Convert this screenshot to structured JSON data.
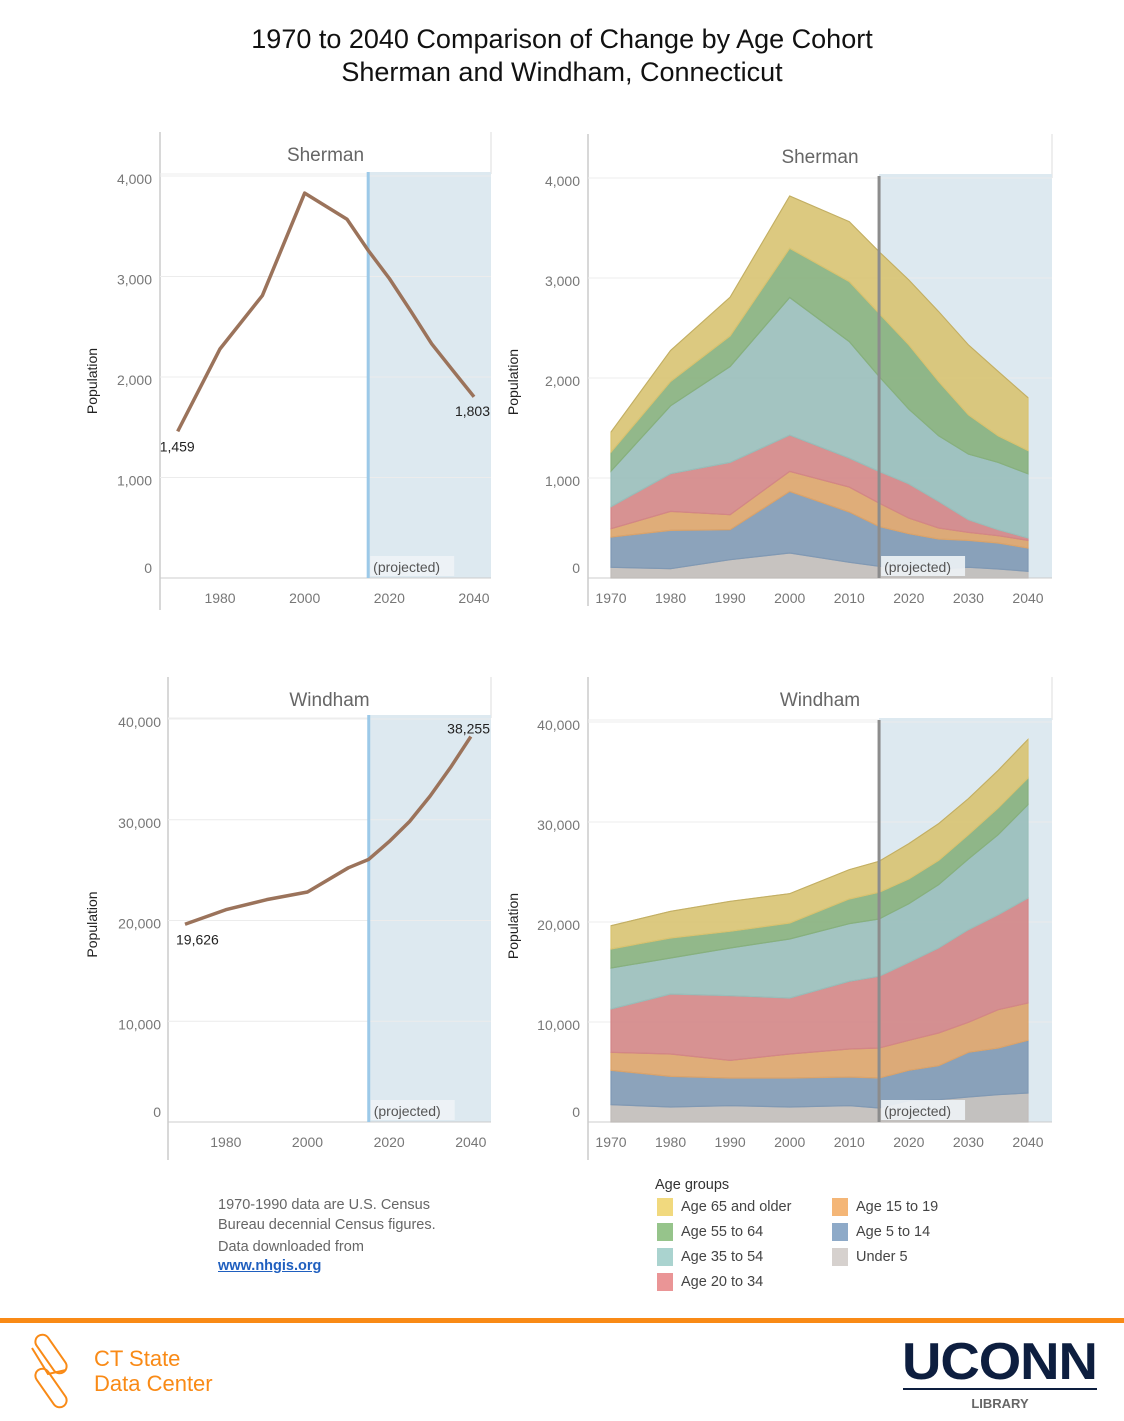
{
  "header": {
    "title_line1": "1970 to 2040 Comparison of Change by Age Cohort",
    "title_line2": "Sherman and Windham, Connecticut"
  },
  "colors": {
    "line": "#9b735b",
    "projection_line_left": "#9cc9e8",
    "projection_line_right": "#8c8c8c",
    "projection_shade": "#dde9f0",
    "Age 65 and older": "#f1d97e",
    "Age 55 to 64": "#96c48b",
    "Age 35 to 54": "#aad3cf",
    "Age 20 to 34": "#ea9596",
    "Age 15 to 19": "#f4b677",
    "Age 5 to 14": "#8eaac8",
    "Under 5": "#d6d1ce"
  },
  "notes": {
    "line1": "1970-1990 data are U.S. Census",
    "line2": "Bureau decennial Census figures.",
    "line3": "Data downloaded from",
    "link": "www.nhgis.org"
  },
  "legend": {
    "title": "Age groups",
    "items": [
      "Age 65 and older",
      "Age 55 to 64",
      "Age 35 to 54",
      "Age 20 to 34",
      "Age 15 to 19",
      "Age 5 to 14",
      "Under 5"
    ]
  },
  "footer": {
    "org_line1": "CT State",
    "org_line2": "Data Center",
    "uconn_logo": "UCONN",
    "uconn_sub": "LIBRARY"
  },
  "chart_data": [
    {
      "type": "line",
      "title": "Sherman",
      "ylabel": "Population",
      "ylim": [
        0,
        4000
      ],
      "yticks": [
        "0",
        "1,000",
        "2,000",
        "3,000",
        "4,000"
      ],
      "xticks": [
        "1980",
        "2000",
        "2020",
        "2040"
      ],
      "projection_start": 2015,
      "projection_label": "(projected)",
      "x": [
        1970,
        1980,
        1990,
        2000,
        2010,
        2015,
        2020,
        2025,
        2030,
        2035,
        2040
      ],
      "y": [
        1459,
        2280,
        2810,
        3830,
        3570,
        3260,
        2980,
        2660,
        2330,
        2065,
        1803
      ],
      "data_labels": {
        "first": "1,459",
        "last": "1,803"
      }
    },
    {
      "type": "area",
      "stacked": true,
      "title": "Sherman",
      "ylabel": "Population",
      "ylim": [
        0,
        4000
      ],
      "yticks": [
        "0",
        "1,000",
        "2,000",
        "3,000",
        "4,000"
      ],
      "xticks": [
        "1970",
        "1980",
        "1990",
        "2000",
        "2010",
        "2020",
        "2030",
        "2040"
      ],
      "projection_start": 2015,
      "projection_label": "(projected)",
      "x": [
        1970,
        1980,
        1990,
        2000,
        2010,
        2015,
        2020,
        2025,
        2030,
        2035,
        2040
      ],
      "series": [
        {
          "name": "Age 65 and older",
          "values": [
            200,
            310,
            387,
            523,
            599,
            616,
            649,
            699,
            699,
            643,
            528
          ]
        },
        {
          "name": "Age 55 to 64",
          "values": [
            190,
            243,
            306,
            492,
            600,
            632,
            643,
            543,
            393,
            266,
            233
          ]
        },
        {
          "name": "Age 35 to 54",
          "values": [
            356,
            679,
            959,
            1376,
            1165,
            949,
            746,
            656,
            656,
            673,
            642
          ]
        },
        {
          "name": "Age 20 to 34",
          "values": [
            220,
            377,
            523,
            363,
            290,
            317,
            343,
            266,
            127,
            60,
            24
          ]
        },
        {
          "name": "Age 15 to 19",
          "values": [
            84,
            190,
            150,
            200,
            249,
            233,
            156,
            110,
            80,
            73,
            76
          ]
        },
        {
          "name": "Age 5 to 14",
          "values": [
            302,
            383,
            300,
            616,
            503,
            399,
            343,
            300,
            269,
            260,
            233
          ]
        },
        {
          "name": "Under 5",
          "values": [
            107,
            93,
            183,
            250,
            157,
            117,
            100,
            90,
            107,
            90,
            67
          ]
        }
      ]
    },
    {
      "type": "line",
      "title": "Windham",
      "ylabel": "Population",
      "ylim": [
        0,
        40000
      ],
      "yticks": [
        "0",
        "10,000",
        "20,000",
        "30,000",
        "40,000"
      ],
      "xticks": [
        "1980",
        "2000",
        "2020",
        "2040"
      ],
      "projection_start": 2015,
      "projection_label": "(projected)",
      "x": [
        1970,
        1980,
        1990,
        2000,
        2010,
        2015,
        2020,
        2025,
        2030,
        2035,
        2040
      ],
      "y": [
        19626,
        21070,
        22070,
        22830,
        25230,
        26070,
        27830,
        29830,
        32330,
        35170,
        38255
      ],
      "data_labels": {
        "first": "19,626",
        "last": "38,255"
      }
    },
    {
      "type": "area",
      "stacked": true,
      "title": "Windham",
      "ylabel": "Population",
      "ylim": [
        0,
        40000
      ],
      "yticks": [
        "0",
        "10,000",
        "20,000",
        "30,000",
        "40,000"
      ],
      "xticks": [
        "1970",
        "1980",
        "1990",
        "2000",
        "2010",
        "2020",
        "2030",
        "2040"
      ],
      "projection_start": 2015,
      "projection_label": "(projected)",
      "x": [
        1970,
        1980,
        1990,
        2000,
        2010,
        2015,
        2020,
        2025,
        2030,
        2035,
        2040
      ],
      "series": [
        {
          "name": "Age 65 and older",
          "values": [
            2326,
            2666,
            3000,
            2933,
            2933,
            3100,
            3533,
            3667,
            3600,
            3766,
            3855
          ]
        },
        {
          "name": "Age 55 to 64",
          "values": [
            1900,
            2000,
            1666,
            1600,
            2467,
            2666,
            2467,
            2433,
            2433,
            2667,
            2667
          ]
        },
        {
          "name": "Age 35 to 54",
          "values": [
            4100,
            3600,
            4767,
            5900,
            5767,
            5734,
            5867,
            6333,
            7067,
            8000,
            9333
          ]
        },
        {
          "name": "Age 20 to 34",
          "values": [
            4334,
            6000,
            6467,
            5600,
            6766,
            7166,
            7800,
            8500,
            9267,
            9500,
            10500
          ]
        },
        {
          "name": "Age 15 to 19",
          "values": [
            1800,
            2234,
            1766,
            2400,
            2800,
            3000,
            3000,
            3267,
            3000,
            3833,
            3734
          ]
        },
        {
          "name": "Age 5 to 14",
          "values": [
            3433,
            3066,
            2767,
            2900,
            2867,
            3000,
            3033,
            3400,
            4466,
            4667,
            5266
          ]
        },
        {
          "name": "Under 5",
          "values": [
            1733,
            1500,
            1633,
            1500,
            1633,
            1400,
            2133,
            2233,
            2500,
            2733,
            2900
          ]
        }
      ]
    }
  ]
}
